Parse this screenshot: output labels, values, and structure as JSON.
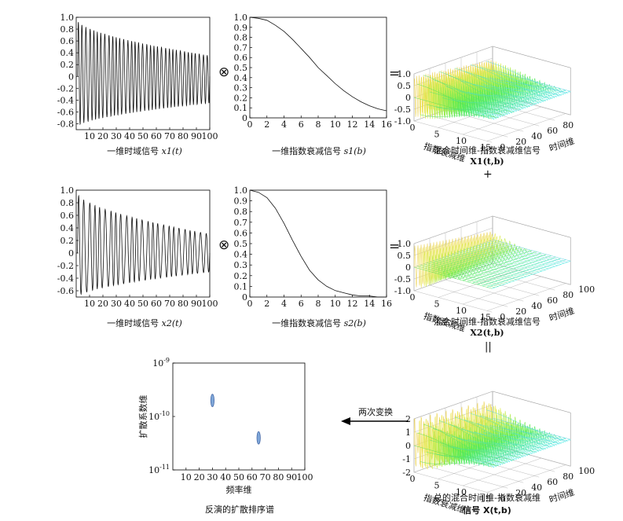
{
  "operators": {
    "conv": "⊗",
    "equals": "=",
    "plus": "+",
    "parallel": "||"
  },
  "chart_data": [
    {
      "id": "x1",
      "type": "line",
      "title": "",
      "xlabel_text": "一维时域信号",
      "xlabel_math": "x1(t)",
      "xlim": [
        0,
        100
      ],
      "ylim": [
        -0.9,
        1.0
      ],
      "xticks": [
        "10",
        "20",
        "30",
        "40",
        "50",
        "60",
        "70",
        "80",
        "90",
        "100"
      ],
      "yticks": [
        "1.0",
        "0.8",
        "0.6",
        "0.4",
        "0.2",
        "0",
        "-0.2",
        "-0.4",
        "-0.6",
        "-0.8"
      ],
      "signal": {
        "model": "damped_oscillation",
        "peak_start": 0.95,
        "peak_end": 0.35,
        "trough_start": -0.85,
        "trough_end": -0.45,
        "cycles": 35
      }
    },
    {
      "id": "s1",
      "type": "line",
      "xlabel_text": "一维指数衰减信号",
      "xlabel_math": "s1(b)",
      "xlim": [
        0,
        16
      ],
      "ylim": [
        0,
        1.0
      ],
      "xticks": [
        "0",
        "2",
        "4",
        "6",
        "8",
        "10",
        "12",
        "14",
        "16"
      ],
      "yticks": [
        "1.0",
        "0.9",
        "0.8",
        "0.7",
        "0.6",
        "0.5",
        "0.4",
        "0.3",
        "0.2",
        "0.1",
        "0"
      ],
      "x": [
        0,
        1,
        2,
        3,
        4,
        5,
        6,
        7,
        8,
        9,
        10,
        11,
        12,
        13,
        14,
        15,
        16
      ],
      "y": [
        1.0,
        0.99,
        0.97,
        0.92,
        0.86,
        0.78,
        0.69,
        0.6,
        0.5,
        0.42,
        0.34,
        0.27,
        0.21,
        0.16,
        0.12,
        0.09,
        0.07
      ]
    },
    {
      "id": "X1",
      "type": "surface",
      "caption_line1": "混合时间维-指数衰减维信号",
      "caption_line2": "X1(t,b)",
      "zticks": [
        "1.0",
        "0.5",
        "0",
        "-0.5",
        "-1.0"
      ],
      "b_ticks": [
        "0",
        "5",
        "10",
        "15"
      ],
      "t_ticks": [
        "0",
        "20",
        "40",
        "60",
        "80"
      ],
      "b_label": "指数衰减维",
      "t_label": "时间维"
    },
    {
      "id": "x2",
      "type": "line",
      "xlabel_text": "一维时域信号",
      "xlabel_math": "x2(t)",
      "xlim": [
        0,
        100
      ],
      "ylim": [
        -0.7,
        1.0
      ],
      "xticks": [
        "10",
        "20",
        "30",
        "40",
        "50",
        "60",
        "70",
        "80",
        "90",
        "100"
      ],
      "yticks": [
        "1.0",
        "0.8",
        "0.6",
        "0.4",
        "0.2",
        "0",
        "-0.2",
        "-0.4",
        "-0.6"
      ],
      "signal": {
        "model": "damped_oscillation",
        "peak_start": 0.95,
        "peak_end": 0.3,
        "trough_start": -0.7,
        "trough_end": -0.3,
        "cycles": 25
      }
    },
    {
      "id": "s2",
      "type": "line",
      "xlabel_text": "一维指数衰减信号",
      "xlabel_math": "s2(b)",
      "xlim": [
        0,
        16
      ],
      "ylim": [
        0,
        1.0
      ],
      "xticks": [
        "0",
        "2",
        "4",
        "6",
        "8",
        "10",
        "12",
        "14",
        "16"
      ],
      "yticks": [
        "1.0",
        "0.9",
        "0.8",
        "0.7",
        "0.6",
        "0.5",
        "0.4",
        "0.3",
        "0.2",
        "0.1",
        "0"
      ],
      "x": [
        0,
        1,
        2,
        3,
        4,
        5,
        6,
        7,
        8,
        9,
        10,
        11,
        12,
        13,
        14,
        15,
        16
      ],
      "y": [
        1.0,
        0.98,
        0.93,
        0.83,
        0.69,
        0.53,
        0.38,
        0.25,
        0.16,
        0.1,
        0.06,
        0.04,
        0.02,
        0.01,
        0.01,
        0.0,
        0.0
      ]
    },
    {
      "id": "X2",
      "type": "surface",
      "caption_line1": "混合时间维-指数衰减维信号",
      "caption_line2": "X2(t,b)",
      "zticks": [
        "1.0",
        "0.5",
        "0",
        "-0.5",
        "-1.0"
      ],
      "b_ticks": [
        "0",
        "5",
        "10",
        "15"
      ],
      "t_ticks": [
        "0",
        "20",
        "40",
        "60",
        "80",
        "100"
      ],
      "b_label": "指数衰减维",
      "t_label": "时间维"
    },
    {
      "id": "X",
      "type": "surface",
      "caption_line1": "总的混合时间维-指数衰减维",
      "caption_line2": "信号 X(t,b)",
      "zticks": [
        "2",
        "1",
        "0",
        "-1",
        "-2"
      ],
      "b_ticks": [
        "0",
        "5",
        "10",
        "15"
      ],
      "t_ticks": [
        "0",
        "20",
        "40",
        "60",
        "80",
        "100"
      ],
      "b_label": "指数衰减维",
      "t_label": "时间维"
    },
    {
      "id": "spectrum",
      "type": "scatter",
      "title": "反演的扩散排序谱",
      "xlabel": "频率维",
      "ylabel": "扩散系数维",
      "xlim": [
        0,
        100
      ],
      "ylim_log10": [
        -11,
        -9
      ],
      "xticks": [
        "10",
        "20",
        "30",
        "40",
        "50",
        "60",
        "70",
        "80",
        "90",
        "100"
      ],
      "yticks": [
        "10^-9",
        "10^-10",
        "10^-11"
      ],
      "peaks": [
        {
          "x": 30,
          "log10_d": -9.7
        },
        {
          "x": 65,
          "log10_d": -10.4
        }
      ]
    }
  ],
  "arrow_label": "两次变换"
}
